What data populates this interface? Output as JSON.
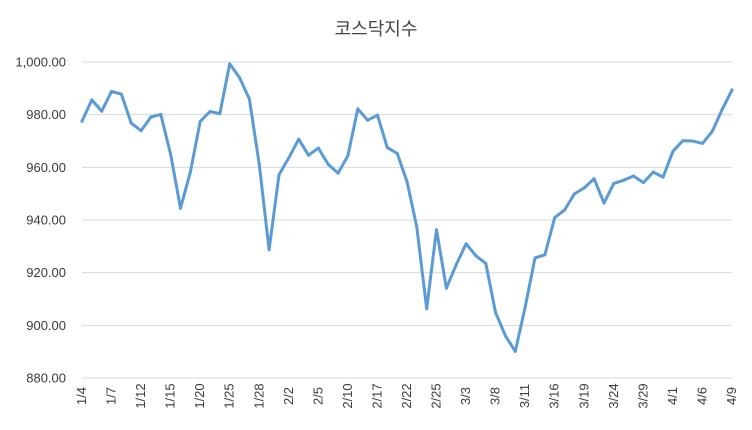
{
  "chart_data": {
    "type": "line",
    "title": "코스닥지수",
    "xlabel": "",
    "ylabel": "",
    "ylim": [
      880,
      1000
    ],
    "yticks": [
      "880.00",
      "900.00",
      "920.00",
      "940.00",
      "960.00",
      "980.00",
      "1,000.00"
    ],
    "ytick_values": [
      880,
      900,
      920,
      940,
      960,
      980,
      1000
    ],
    "xtick_labels": [
      "1/4",
      "1/7",
      "1/12",
      "1/15",
      "1/20",
      "1/25",
      "1/28",
      "2/2",
      "2/5",
      "2/10",
      "2/17",
      "2/22",
      "2/25",
      "3/3",
      "3/8",
      "3/11",
      "3/16",
      "3/19",
      "3/24",
      "3/29",
      "4/1",
      "4/6",
      "4/9"
    ],
    "xtick_index": [
      0,
      3,
      6,
      9,
      12,
      15,
      18,
      21,
      24,
      27,
      30,
      33,
      36,
      39,
      42,
      45,
      48,
      51,
      54,
      57,
      60,
      63,
      66
    ],
    "grid": true,
    "legend": "none",
    "line_color": "#5b9bd5",
    "values": [
      977.5,
      985.6,
      981.3,
      988.8,
      987.8,
      976.8,
      973.9,
      979.1,
      980.1,
      965.0,
      944.5,
      958.1,
      977.4,
      981.2,
      980.4,
      999.3,
      994.0,
      985.9,
      961.0,
      928.7,
      957.2,
      963.6,
      970.7,
      964.6,
      967.3,
      961.1,
      957.8,
      964.4,
      982.2,
      977.9,
      979.8,
      967.5,
      965.3,
      954.6,
      937.3,
      906.3,
      936.3,
      914.1,
      923.0,
      931.0,
      926.4,
      923.5,
      904.8,
      896.0,
      890.1,
      907.0,
      925.6,
      926.8,
      940.9,
      943.8,
      949.9,
      952.2,
      955.7,
      946.4,
      953.9,
      955.1,
      956.7,
      954.2,
      958.2,
      956.3,
      966.1,
      970.1,
      970.0,
      969.1,
      973.7,
      982.0,
      989.4
    ]
  }
}
